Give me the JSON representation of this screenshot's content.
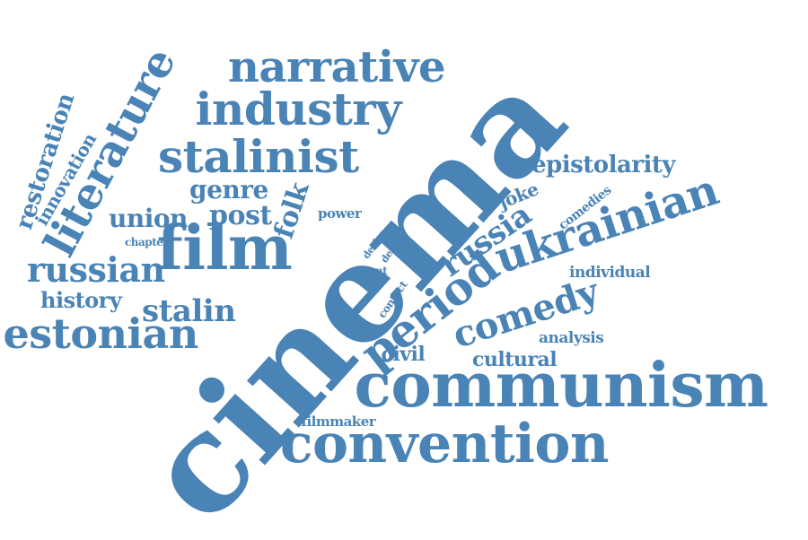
{
  "color": "#4a83b5",
  "words": [
    {
      "id": "cinema",
      "text": "cinema"
    },
    {
      "id": "communism",
      "text": "communism"
    },
    {
      "id": "convention",
      "text": "convention"
    },
    {
      "id": "ukrainian",
      "text": "ukrainian"
    },
    {
      "id": "period",
      "text": "period"
    },
    {
      "id": "film",
      "text": "film"
    },
    {
      "id": "narrative",
      "text": "narrative"
    },
    {
      "id": "industry",
      "text": "industry"
    },
    {
      "id": "stalinist",
      "text": "stalinist"
    },
    {
      "id": "literature",
      "text": "literature"
    },
    {
      "id": "estonian",
      "text": "estonian"
    },
    {
      "id": "russian",
      "text": "russian"
    },
    {
      "id": "comedy",
      "text": "comedy"
    },
    {
      "id": "russia",
      "text": "russia"
    },
    {
      "id": "epistolarity",
      "text": "epistolarity"
    },
    {
      "id": "stalin",
      "text": "stalin"
    },
    {
      "id": "history",
      "text": "history"
    },
    {
      "id": "genre",
      "text": "genre"
    },
    {
      "id": "union",
      "text": "union"
    },
    {
      "id": "post",
      "text": "post"
    },
    {
      "id": "folk",
      "text": "folk"
    },
    {
      "id": "restoration",
      "text": "restoration"
    },
    {
      "id": "innovation",
      "text": "innovation"
    },
    {
      "id": "cultural",
      "text": "cultural"
    },
    {
      "id": "civil",
      "text": "civil"
    },
    {
      "id": "analysis",
      "text": "analysis"
    },
    {
      "id": "individual",
      "text": "individual"
    },
    {
      "id": "joke",
      "text": "joke"
    },
    {
      "id": "comedies",
      "text": "comedies"
    },
    {
      "id": "power",
      "text": "power"
    },
    {
      "id": "chapter",
      "text": "chapter"
    },
    {
      "id": "device",
      "text": "device"
    },
    {
      "id": "death",
      "text": "death"
    },
    {
      "id": "recent",
      "text": "recent"
    },
    {
      "id": "contact",
      "text": "contact"
    },
    {
      "id": "filmmaker",
      "text": "filmmaker"
    }
  ]
}
